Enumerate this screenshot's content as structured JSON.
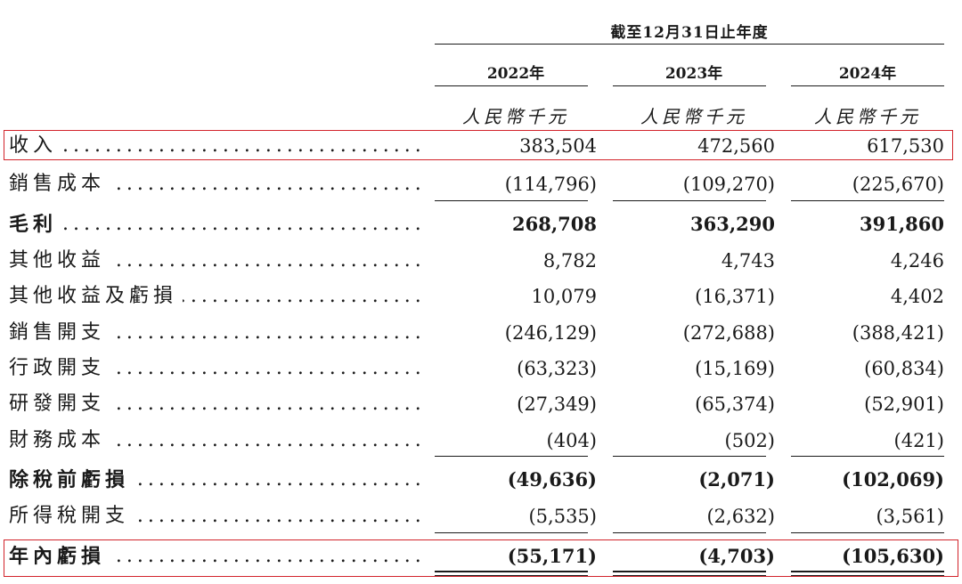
{
  "header": {
    "period": "截至12月31日止年度",
    "years": [
      "2022年",
      "2023年",
      "2024年"
    ],
    "unit": "人民幣千元"
  },
  "rows": [
    {
      "label": "收入",
      "values": [
        "383,504",
        "472,560",
        "617,530"
      ],
      "bold": false,
      "highlighted": true
    },
    {
      "label": "銷售成本",
      "values": [
        "(114,796)",
        "(109,270)",
        "(225,670)"
      ],
      "bold": false
    },
    {
      "label": "毛利",
      "values": [
        "268,708",
        "363,290",
        "391,860"
      ],
      "bold": true
    },
    {
      "label": "其他收益",
      "values": [
        "8,782",
        "4,743",
        "4,246"
      ],
      "bold": false
    },
    {
      "label": "其他收益及虧損",
      "values": [
        "10,079",
        "(16,371)",
        "4,402"
      ],
      "bold": false
    },
    {
      "label": "銷售開支",
      "values": [
        "(246,129)",
        "(272,688)",
        "(388,421)"
      ],
      "bold": false
    },
    {
      "label": "行政開支",
      "values": [
        "(63,323)",
        "(15,169)",
        "(60,834)"
      ],
      "bold": false
    },
    {
      "label": "研發開支",
      "values": [
        "(27,349)",
        "(65,374)",
        "(52,901)"
      ],
      "bold": false
    },
    {
      "label": "財務成本",
      "values": [
        "(404)",
        "(502)",
        "(421)"
      ],
      "bold": false
    },
    {
      "label": "除稅前虧損",
      "values": [
        "(49,636)",
        "(2,071)",
        "(102,069)"
      ],
      "bold": true
    },
    {
      "label": "所得稅開支",
      "values": [
        "(5,535)",
        "(2,632)",
        "(3,561)"
      ],
      "bold": false
    },
    {
      "label": "年內虧損",
      "values": [
        "(55,171)",
        "(4,703)",
        "(105,630)"
      ],
      "bold": true,
      "highlighted": true
    }
  ],
  "highlight_color": "#d2232a"
}
